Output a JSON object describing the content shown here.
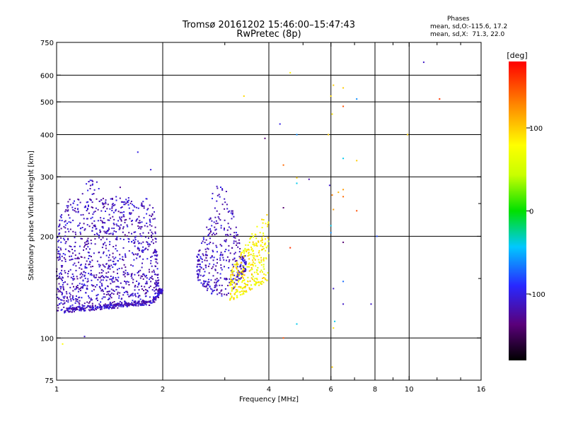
{
  "header": {
    "title_line1": "Tromsø 20161202 15:46:00–15:47:43",
    "title_line2": "RwPretec (8p)"
  },
  "stats": {
    "heading": "Phases",
    "line_o": "mean, sd,O:-115.6, 17.2",
    "line_x": "mean, sd,X:  71.3, 22.0"
  },
  "colorbar": {
    "label": "[deg]",
    "ticks": [
      {
        "value": 100,
        "label": "100"
      },
      {
        "value": 0,
        "label": "0"
      },
      {
        "value": -100,
        "label": "-100"
      }
    ],
    "min": -180,
    "max": 180
  },
  "chart_data": {
    "type": "scatter",
    "title": "Tromsø 20161202 15:46:00–15:47:43",
    "subtitle": "RwPretec (8p)",
    "xlabel": "Frequency [MHz]",
    "ylabel": "Stationary phase Virtual Height [km]",
    "xscale": "log",
    "yscale": "log",
    "xlim": [
      1,
      16
    ],
    "ylim": [
      75,
      750
    ],
    "grid": true,
    "x_ticks": [
      1,
      2,
      4,
      6,
      8,
      10,
      16
    ],
    "x_tick_labels": [
      "1",
      "2",
      "4",
      "6",
      "8",
      "10",
      "16"
    ],
    "x_minor_ticks": [
      3,
      5,
      7,
      9,
      12,
      14
    ],
    "y_ticks": [
      75,
      100,
      200,
      300,
      400,
      500,
      600,
      750
    ],
    "y_tick_labels": [
      "75",
      "100",
      "200",
      "300",
      "400",
      "500",
      "600",
      "750"
    ],
    "y_minor_ticks": [
      150,
      250
    ],
    "grid_x": [
      2,
      4,
      6,
      8,
      10
    ],
    "grid_y": [
      100,
      200,
      300,
      400,
      500,
      600
    ],
    "color_scale": "phase [deg]",
    "clusters": [
      {
        "name": "o-trace-lower-edge",
        "f": [
          1.05,
          2.0
        ],
        "h": [
          118,
          132
        ],
        "phase": [
          -130,
          -95
        ],
        "count": 260,
        "shape": "edge"
      },
      {
        "name": "o-trace-body",
        "f": [
          1.0,
          2.0
        ],
        "h": [
          120,
          300
        ],
        "phase": [
          -130,
          -95
        ],
        "count": 1150,
        "shape": "body"
      },
      {
        "name": "o-trace-f2",
        "f": [
          2.5,
          3.45
        ],
        "h": [
          128,
          285
        ],
        "phase": [
          -130,
          -95
        ],
        "count": 380,
        "shape": "body2"
      },
      {
        "name": "x-trace-f2",
        "f": [
          3.1,
          4.0
        ],
        "h": [
          128,
          240
        ],
        "phase": [
          55,
          110
        ],
        "count": 300,
        "shape": "xbody"
      }
    ],
    "points": [
      {
        "f": 1.04,
        "h": 96,
        "phase": 80
      },
      {
        "f": 1.2,
        "h": 101,
        "phase": -110
      },
      {
        "f": 1.7,
        "h": 355,
        "phase": -100
      },
      {
        "f": 1.85,
        "h": 315,
        "phase": -105
      },
      {
        "f": 3.4,
        "h": 520,
        "phase": 95
      },
      {
        "f": 3.9,
        "h": 390,
        "phase": -140
      },
      {
        "f": 4.3,
        "h": 430,
        "phase": -100
      },
      {
        "f": 4.6,
        "h": 610,
        "phase": 85
      },
      {
        "f": 4.4,
        "h": 325,
        "phase": 140
      },
      {
        "f": 4.8,
        "h": 400,
        "phase": -60
      },
      {
        "f": 4.8,
        "h": 298,
        "phase": 100
      },
      {
        "f": 4.8,
        "h": 287,
        "phase": -40
      },
      {
        "f": 5.2,
        "h": 295,
        "phase": -120
      },
      {
        "f": 4.6,
        "h": 185,
        "phase": 160
      },
      {
        "f": 4.4,
        "h": 243,
        "phase": -140
      },
      {
        "f": 4.8,
        "h": 110,
        "phase": -40
      },
      {
        "f": 4.4,
        "h": 100,
        "phase": 150
      },
      {
        "f": 5.9,
        "h": 400,
        "phase": 100
      },
      {
        "f": 5.95,
        "h": 283,
        "phase": -110
      },
      {
        "f": 6.0,
        "h": 520,
        "phase": 95
      },
      {
        "f": 6.05,
        "h": 460,
        "phase": 90
      },
      {
        "f": 6.1,
        "h": 560,
        "phase": 100
      },
      {
        "f": 6.05,
        "h": 265,
        "phase": 130
      },
      {
        "f": 6.1,
        "h": 240,
        "phase": 120
      },
      {
        "f": 6.0,
        "h": 215,
        "phase": -40
      },
      {
        "f": 6.0,
        "h": 205,
        "phase": -60
      },
      {
        "f": 6.1,
        "h": 140,
        "phase": -110
      },
      {
        "f": 6.1,
        "h": 107,
        "phase": 90
      },
      {
        "f": 6.15,
        "h": 112,
        "phase": -40
      },
      {
        "f": 6.05,
        "h": 82,
        "phase": 100
      },
      {
        "f": 6.3,
        "h": 270,
        "phase": 110
      },
      {
        "f": 6.5,
        "h": 550,
        "phase": 100
      },
      {
        "f": 6.5,
        "h": 485,
        "phase": 150
      },
      {
        "f": 6.5,
        "h": 340,
        "phase": -40
      },
      {
        "f": 6.5,
        "h": 275,
        "phase": 120
      },
      {
        "f": 6.5,
        "h": 262,
        "phase": 140
      },
      {
        "f": 6.5,
        "h": 192,
        "phase": -140
      },
      {
        "f": 6.5,
        "h": 147,
        "phase": -70
      },
      {
        "f": 6.5,
        "h": 126,
        "phase": -110
      },
      {
        "f": 7.1,
        "h": 510,
        "phase": -60
      },
      {
        "f": 7.1,
        "h": 335,
        "phase": 100
      },
      {
        "f": 7.1,
        "h": 238,
        "phase": 150
      },
      {
        "f": 7.8,
        "h": 126,
        "phase": -110
      },
      {
        "f": 8.1,
        "h": 200,
        "phase": -80
      },
      {
        "f": 11.0,
        "h": 655,
        "phase": -110
      },
      {
        "f": 12.2,
        "h": 510,
        "phase": 160
      },
      {
        "f": 9.9,
        "h": 400,
        "phase": 100
      }
    ]
  }
}
